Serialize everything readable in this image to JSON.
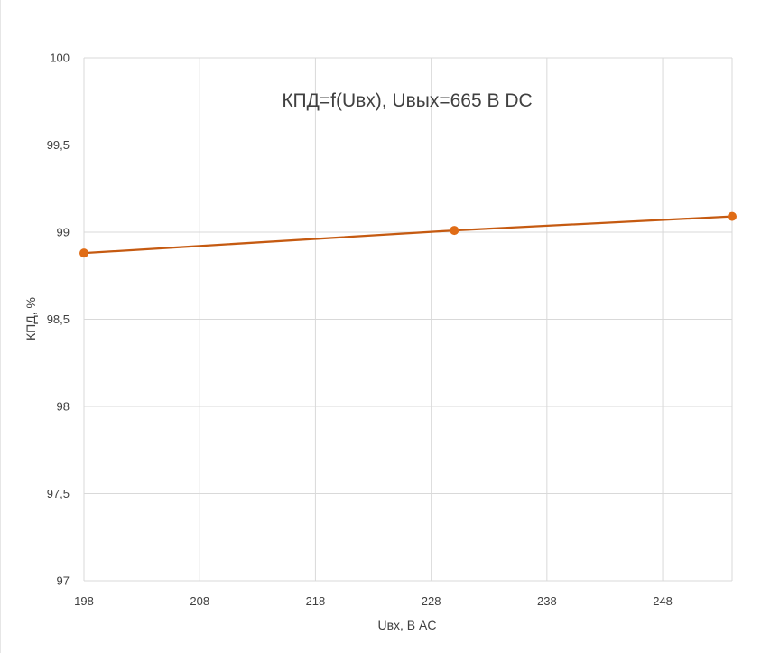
{
  "chart_data": {
    "type": "line",
    "title": "КПД=f(Uвх), Uвых=665 В DC",
    "xlabel": "Uвх, В AC",
    "ylabel": "КПД, %",
    "xlim": [
      198,
      254
    ],
    "ylim": [
      97,
      100
    ],
    "x_ticks": [
      198,
      208,
      218,
      228,
      238,
      248
    ],
    "x_tick_labels": [
      "198",
      "208",
      "218",
      "228",
      "238",
      "248"
    ],
    "y_ticks": [
      97,
      97.5,
      98,
      98.5,
      99,
      99.5,
      100
    ],
    "y_tick_labels": [
      "97",
      "97,5",
      "98",
      "98,5",
      "99",
      "99,5",
      "100"
    ],
    "grid": true,
    "colors": {
      "series": "#c55a11",
      "marker": "#e06c16",
      "grid": "#d9d9d9",
      "text": "#404040"
    },
    "series": [
      {
        "x": [
          198,
          230,
          254
        ],
        "values": [
          98.88,
          99.01,
          99.09
        ]
      }
    ]
  }
}
